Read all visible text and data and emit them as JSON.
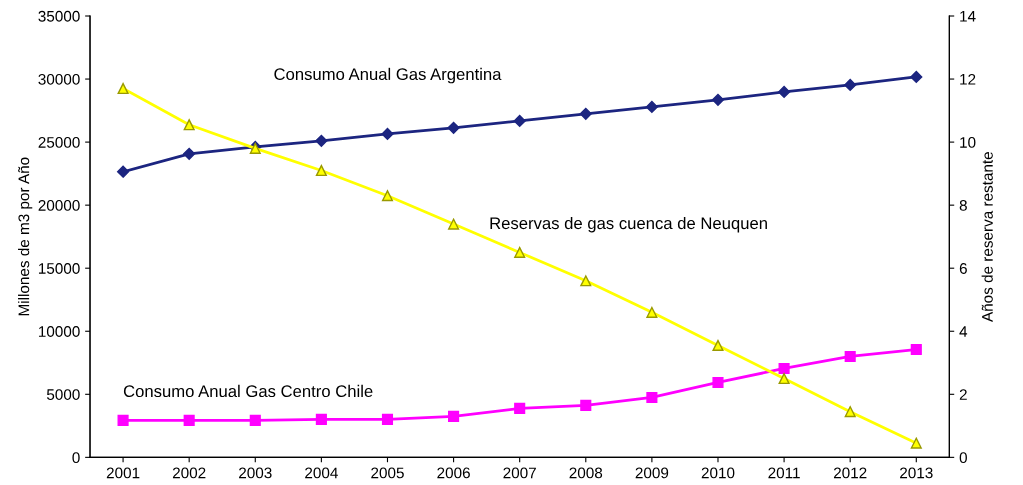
{
  "chart_data": {
    "type": "line",
    "ylabel": "Millones de m3 por Año",
    "y2label": "Años de reserva restante",
    "categories": [
      "2001",
      "2002",
      "2003",
      "2004",
      "2005",
      "2006",
      "2007",
      "2008",
      "2009",
      "2010",
      "2011",
      "2012",
      "2013"
    ],
    "ylim": [
      0,
      35000
    ],
    "yticks": [
      0,
      5000,
      10000,
      15000,
      20000,
      25000,
      30000,
      35000
    ],
    "y2lim": [
      0,
      14
    ],
    "y2ticks": [
      0,
      2,
      4,
      6,
      8,
      10,
      12,
      14
    ],
    "grid": false,
    "legend": false,
    "series": [
      {
        "name": "Consumo Anual Gas Argentina",
        "color": "#1c2580",
        "marker": "diamond",
        "values": [
          22650,
          24070,
          24620,
          25100,
          25650,
          26130,
          26680,
          27240,
          27790,
          28350,
          28980,
          29530,
          30170
        ]
      },
      {
        "name": "Reservas de gas cuenca de Neuquen",
        "color": "#ffff00",
        "marker": "triangle",
        "axis": "y2",
        "values": [
          11.7,
          10.55,
          9.8,
          9.1,
          8.3,
          7.4,
          6.5,
          5.6,
          4.6,
          3.55,
          2.5,
          1.45,
          0.45
        ]
      },
      {
        "name": "Consumo Anual Gas Centro Chile",
        "color": "#ff00ff",
        "marker": "square",
        "values": [
          2930,
          2930,
          2930,
          3010,
          3010,
          3250,
          3880,
          4120,
          4750,
          5940,
          7050,
          8000,
          8550
        ]
      }
    ]
  }
}
